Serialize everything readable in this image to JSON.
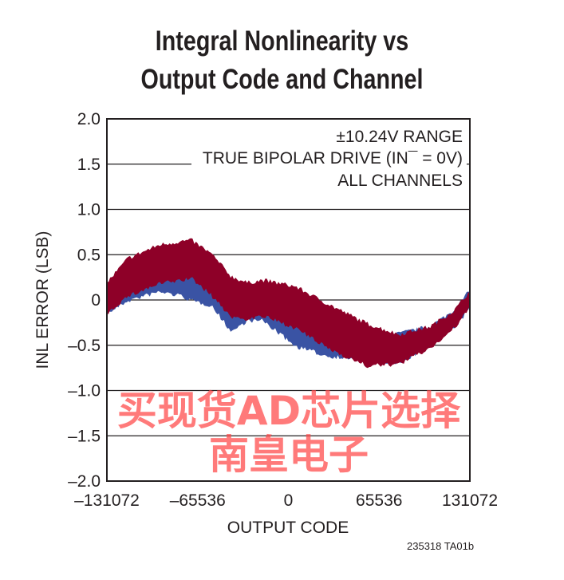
{
  "chart_data": {
    "type": "area",
    "title": [
      "Integral Nonlinearity vs",
      "Output Code and Channel"
    ],
    "xlabel": "OUTPUT CODE",
    "ylabel": "INL ERROR (LSB)",
    "xlim": [
      -131072,
      131072
    ],
    "ylim": [
      -2.0,
      2.0
    ],
    "xticks": [
      "–131072",
      "–65536",
      "0",
      "65536",
      "131072"
    ],
    "xtick_values": [
      -131072,
      -65536,
      0,
      65536,
      131072
    ],
    "yticks": [
      "2.0",
      "1.5",
      "1.0",
      "0.5",
      "0",
      "–0.5",
      "–1.0",
      "–1.5",
      "–2.0"
    ],
    "ytick_values": [
      2.0,
      1.5,
      1.0,
      0.5,
      0,
      -0.5,
      -1.0,
      -1.5,
      -2.0
    ],
    "grid": true,
    "annotations": [
      "±10.24V RANGE",
      "TRUE BIPOLAR DRIVE (IN¯ = 0V)",
      "ALL CHANNELS"
    ],
    "x": [
      -131072,
      -116000,
      -93000,
      -76000,
      -70000,
      -55600,
      -41200,
      -29700,
      -18200,
      4900,
      28000,
      56700,
      79800,
      102800,
      120100,
      131072
    ],
    "series": [
      {
        "name": "blue channels",
        "color": "#3a53a4",
        "upper": [
          0.1,
          0.2,
          0.31,
          0.33,
          0.32,
          0.2,
          -0.02,
          -0.08,
          -0.06,
          -0.15,
          -0.35,
          -0.4,
          -0.38,
          -0.3,
          -0.12,
          0.1
        ],
        "lower": [
          -0.14,
          0.0,
          0.1,
          0.05,
          0.0,
          -0.05,
          -0.34,
          -0.22,
          -0.22,
          -0.5,
          -0.61,
          -0.65,
          -0.7,
          -0.48,
          -0.3,
          -0.08
        ]
      },
      {
        "name": "red channels",
        "color": "#8e0028",
        "upper": [
          0.18,
          0.45,
          0.6,
          0.64,
          0.65,
          0.5,
          0.25,
          0.18,
          0.21,
          0.14,
          -0.05,
          -0.27,
          -0.39,
          -0.3,
          -0.12,
          0.09
        ],
        "lower": [
          -0.14,
          0.05,
          0.19,
          0.23,
          0.25,
          0.06,
          -0.18,
          -0.2,
          -0.17,
          -0.3,
          -0.52,
          -0.72,
          -0.7,
          -0.52,
          -0.3,
          -0.08
        ]
      }
    ]
  },
  "figure_code": "235318 TA01b",
  "watermark": "买现货AD芯片选择南皇电子"
}
